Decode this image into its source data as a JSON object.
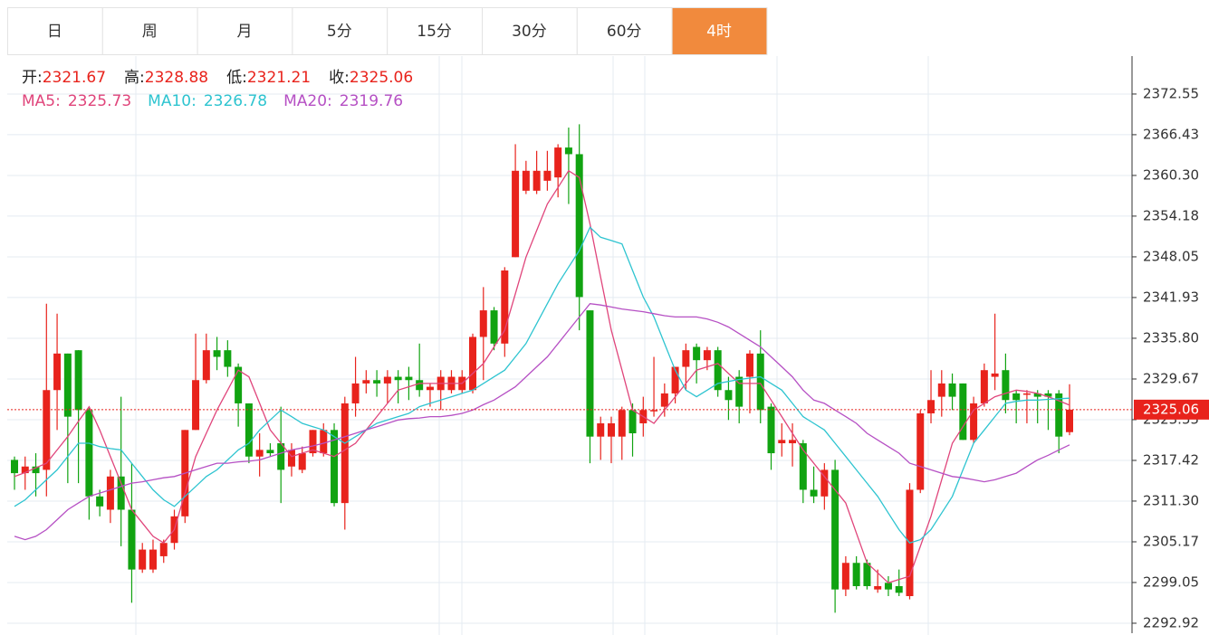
{
  "tabs": [
    "日",
    "周",
    "月",
    "5分",
    "15分",
    "30分",
    "60分",
    "4时"
  ],
  "active_tab": 7,
  "chart_data": {
    "type": "candlestick",
    "ohlc_labels": [
      "开:",
      "高:",
      "低:",
      "收:"
    ],
    "up_color": "#e8231c",
    "down_color": "#11a311",
    "ylim": [
      2291.42,
      2378.26
    ],
    "yticks": [
      2372.55,
      2366.43,
      {
        "value": 2360.3,
        "label": "2360.30"
      },
      2354.18,
      2348.05,
      2341.93,
      {
        "value": 2335.8,
        "label": "2335.80"
      },
      2329.67,
      2323.55,
      2317.42,
      {
        "value": 2311.3,
        "label": "2311.30"
      },
      2305.17,
      2299.05,
      2292.92
    ],
    "grid": true,
    "last_price": 2325.06,
    "open": [
      2317.5,
      2315.5,
      2316.5,
      2316,
      2328,
      2333.5,
      2334,
      2325,
      2312,
      2310,
      2315,
      2310,
      2301,
      2301,
      2303,
      2305,
      2309,
      2322,
      2329.5,
      2334,
      2334,
      2331.5,
      2326,
      2318,
      2319,
      2320,
      2316.5,
      2316,
      2318.5,
      2318.5,
      2322,
      2311,
      2326,
      2329,
      2329.5,
      2329,
      2330,
      2330,
      2329.5,
      2328,
      2328,
      2328,
      2328,
      2328,
      2336,
      2340,
      2335,
      2348,
      2358,
      2358,
      2359.5,
      2360,
      2364.5,
      2363.5,
      2340,
      2321,
      2321,
      2321,
      2325,
      2323,
      2325,
      2325.5,
      2327.5,
      2331.5,
      2334.5,
      2332.5,
      2334,
      2328,
      2330,
      2330,
      2333.5,
      2325.5,
      2320,
      2320,
      2320,
      2313,
      2312,
      2316,
      2298,
      2302,
      2302,
      2298,
      2299,
      2298.5,
      2297,
      2313,
      2324.5,
      2327,
      2329,
      2329,
      2320.5,
      2326,
      2330,
      2331,
      2327.5,
      2327.5,
      2327.5,
      2327.5,
      2327.5,
      2321.67
    ],
    "high": [
      2318,
      2318,
      2318.5,
      2341,
      2339.5,
      2333.5,
      2334,
      2325.5,
      2313,
      2316,
      2327,
      2317,
      2305,
      2305.5,
      2305.5,
      2310,
      2322,
      2336.5,
      2336.5,
      2336,
      2335.5,
      2332,
      2326,
      2321.5,
      2320,
      2325.5,
      2320,
      2319.5,
      2322,
      2323,
      2323,
      2327,
      2333,
      2331,
      2331,
      2331,
      2331,
      2331.5,
      2335,
      2329,
      2331,
      2331,
      2331,
      2336.5,
      2343.5,
      2340.5,
      2346.5,
      2365,
      2362.5,
      2364,
      2364,
      2365,
      2367.5,
      2368,
      2340,
      2324,
      2324,
      2325.5,
      2326,
      2327,
      2333,
      2329,
      2331.5,
      2335,
      2335,
      2334.5,
      2334.5,
      2330,
      2331,
      2334,
      2337,
      2326,
      2323,
      2323,
      2320.5,
      2316.5,
      2317,
      2317.5,
      2303,
      2303,
      2302.5,
      2301,
      2300,
      2301,
      2314,
      2325,
      2331,
      2331,
      2330.5,
      2329,
      2327,
      2332,
      2339.5,
      2333.5,
      2328,
      2328,
      2328,
      2328,
      2328,
      2328.88
    ],
    "low": [
      2313,
      2313,
      2312,
      2312,
      2322,
      2314,
      2314,
      2308.5,
      2309,
      2308,
      2304.5,
      2296,
      2300.5,
      2300.5,
      2302,
      2304,
      2308,
      2322,
      2329,
      2331,
      2330,
      2322.5,
      2317,
      2315,
      2318,
      2311,
      2315,
      2315.5,
      2318,
      2318,
      2310.5,
      2307,
      2324,
      2327.5,
      2327,
      2326,
      2326,
      2326.5,
      2327,
      2325.5,
      2325,
      2327.5,
      2327.5,
      2327.5,
      2329.5,
      2334,
      2333,
      2348,
      2357.5,
      2357.5,
      2358,
      2357,
      2356,
      2337,
      2317,
      2317.5,
      2317,
      2317.5,
      2318,
      2321,
      2324,
      2324,
      2326,
      2328,
      2329,
      2331,
      2327,
      2323.5,
      2323,
      2324.5,
      2323,
      2316,
      2318,
      2316.5,
      2311,
      2311,
      2310,
      2294.5,
      2297,
      2298,
      2298,
      2297.5,
      2297,
      2297,
      2296.5,
      2312.5,
      2323,
      2324,
      2325,
      2320.5,
      2320,
      2325.5,
      2328,
      2324.5,
      2323,
      2323,
      2323,
      2322,
      2318.5,
      2321.21
    ],
    "close": [
      2315.5,
      2316.5,
      2315.5,
      2328,
      2333.5,
      2324,
      2325,
      2312,
      2310.5,
      2315,
      2310,
      2301,
      2304,
      2304,
      2305,
      2309,
      2322,
      2329.5,
      2334,
      2333,
      2331.5,
      2326,
      2318,
      2319,
      2318.5,
      2316,
      2319,
      2318.5,
      2322,
      2322,
      2311,
      2326,
      2329,
      2329.5,
      2329,
      2330,
      2329.5,
      2329.5,
      2328,
      2328.5,
      2330,
      2330,
      2330,
      2336,
      2340,
      2335,
      2346,
      2361,
      2361,
      2361,
      2361,
      2364.5,
      2363.5,
      2342,
      2321,
      2323,
      2323,
      2325,
      2321.5,
      2325,
      2325,
      2327.5,
      2331.5,
      2334,
      2332.5,
      2334,
      2328,
      2326.5,
      2325.5,
      2333.5,
      2325,
      2318.5,
      2320.5,
      2320.5,
      2313,
      2312,
      2316,
      2298,
      2302,
      2298.5,
      2298.5,
      2298.5,
      2298,
      2297.5,
      2313,
      2324.5,
      2326.5,
      2329,
      2327,
      2320.5,
      2326,
      2331,
      2330.5,
      2326.5,
      2326.5,
      2327.5,
      2327,
      2327,
      2321,
      2325.06
    ],
    "series": [
      {
        "name": "MA5:",
        "color": "#e0457b",
        "values": [
          2315.0,
          2315.6,
          2316.3,
          2317.0,
          2319.0,
          2321.0,
          2323.3,
          2325.5,
          2322.0,
          2318.0,
          2314.0,
          2310.0,
          2308.0,
          2306.0,
          2305.0,
          2307.0,
          2312.5,
          2318.0,
          2321.5,
          2325.0,
          2328.0,
          2331.0,
          2330.0,
          2326.0,
          2322.0,
          2320.0,
          2318.0,
          2318.5,
          2319.0,
          2318.5,
          2318.0,
          2319.0,
          2320.0,
          2322.0,
          2324.0,
          2326.0,
          2328.0,
          2328.5,
          2329.0,
          2329.0,
          2329.0,
          2329.0,
          2329.0,
          2330.5,
          2332.0,
          2334.5,
          2337.0,
          2342.5,
          2348.0,
          2352.0,
          2356.0,
          2358.5,
          2361.0,
          2360.0,
          2353.0,
          2345.0,
          2337.0,
          2331.0,
          2325.0,
          2324.0,
          2323.0,
          2325.0,
          2327.0,
          2329.0,
          2331.0,
          2331.5,
          2332.0,
          2330.5,
          2329.0,
          2329.0,
          2329.0,
          2326.5,
          2324.0,
          2321.5,
          2319.0,
          2317.0,
          2315.0,
          2313.0,
          2311.0,
          2306.5,
          2302.0,
          2300.5,
          2299.0,
          2299.5,
          2300.0,
          2304.5,
          2309.0,
          2314.5,
          2320.0,
          2322.5,
          2325.0,
          2326.0,
          2327.0,
          2327.5,
          2328.0,
          2327.8,
          2327.5,
          2327.0,
          2326.4,
          2325.73
        ]
      },
      {
        "name": "MA10:",
        "color": "#2ec4d0",
        "values": [
          2310.5,
          2311.5,
          2313,
          2314.5,
          2316,
          2318,
          2320,
          2320,
          2319.5,
          2319.2,
          2319,
          2317,
          2315,
          2313,
          2311.5,
          2310.5,
          2312,
          2313.5,
          2315,
          2316,
          2317.5,
          2319,
          2320,
          2322,
          2323.5,
          2325,
          2324,
          2323,
          2322.5,
          2322,
          2321,
          2320,
          2321,
          2322,
          2323,
          2323.5,
          2324,
          2324.5,
          2325.5,
          2326,
          2326.5,
          2327,
          2327.5,
          2328,
          2329,
          2330,
          2331,
          2333,
          2335,
          2338,
          2341,
          2344,
          2346.5,
          2349,
          2352.5,
          2351,
          2350.5,
          2350,
          2346,
          2342,
          2339,
          2335,
          2331,
          2328,
          2327,
          2328,
          2329,
          2329.3,
          2329.6,
          2329.8,
          2330,
          2329,
          2328,
          2326,
          2324,
          2323,
          2322,
          2320,
          2318,
          2316,
          2314,
          2312,
          2309.5,
          2307,
          2305,
          2305.5,
          2307,
          2309.5,
          2312,
          2316,
          2320,
          2322,
          2324,
          2326,
          2326.3,
          2326.5,
          2326.5,
          2326.6,
          2326.7,
          2326.78
        ]
      },
      {
        "name": "MA20:",
        "color": "#b650c4",
        "values": [
          2306,
          2305.5,
          2306,
          2307,
          2308.5,
          2310,
          2311,
          2312,
          2312.5,
          2313,
          2313.5,
          2314,
          2314.2,
          2314.5,
          2314.8,
          2315,
          2315.5,
          2316,
          2316.5,
          2317,
          2317,
          2317.2,
          2317.3,
          2317.5,
          2318,
          2318.5,
          2319,
          2319.3,
          2319.6,
          2320,
          2320.5,
          2321,
          2321.5,
          2322,
          2322.5,
          2323,
          2323.5,
          2323.7,
          2323.8,
          2324,
          2324,
          2324.2,
          2324.5,
          2325,
          2325.8,
          2326.5,
          2327.5,
          2328.5,
          2330,
          2331.5,
          2333,
          2335,
          2337,
          2339,
          2341,
          2340.8,
          2340.5,
          2340.2,
          2340,
          2339.8,
          2339.5,
          2339.2,
          2339,
          2339,
          2339,
          2338.7,
          2338.2,
          2337.5,
          2336.5,
          2335.5,
          2334.5,
          2333,
          2331.5,
          2330,
          2328,
          2326.5,
          2326,
          2325,
          2324,
          2323,
          2321.5,
          2320.5,
          2319.5,
          2318.5,
          2317,
          2316.5,
          2316,
          2315.5,
          2315,
          2314.8,
          2314.5,
          2314.2,
          2314.5,
          2315,
          2315.5,
          2316.5,
          2317.5,
          2318.2,
          2319,
          2319.76
        ]
      }
    ]
  }
}
